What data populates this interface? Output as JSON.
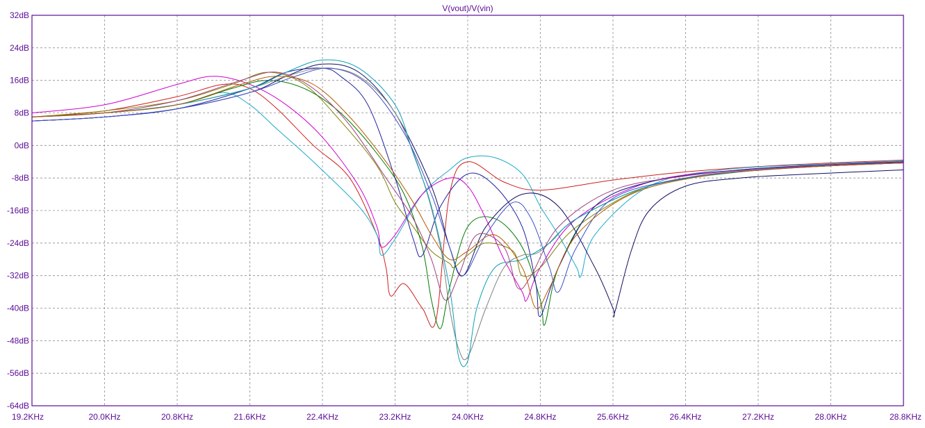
{
  "chart_data": {
    "type": "line",
    "title": "V(vout)/V(vin)",
    "x_unit": "KHz",
    "y_unit": "dB",
    "xlim": [
      19.2,
      28.8
    ],
    "ylim": [
      -64,
      32
    ],
    "grid": true,
    "x_ticks": [
      "19.2KHz",
      "20.0KHz",
      "20.8KHz",
      "21.6KHz",
      "22.4KHz",
      "23.2KHz",
      "24.0KHz",
      "24.8KHz",
      "25.6KHz",
      "26.4KHz",
      "27.2KHz",
      "28.0KHz",
      "28.8KHz"
    ],
    "y_ticks": [
      "32dB",
      "24dB",
      "16dB",
      "8dB",
      "0dB",
      "-8dB",
      "-16dB",
      "-24dB",
      "-32dB",
      "-40dB",
      "-48dB",
      "-56dB",
      "-64dB"
    ],
    "colors": {
      "background": "#ffffff",
      "axes": "#5a0a96",
      "grid": "#8c8c8c",
      "tick_text": "#5a0a96"
    },
    "series": [
      {
        "color": "#d01e1e",
        "x": [
          19.2,
          20.0,
          20.8,
          21.3,
          21.6,
          21.9,
          22.3,
          22.7,
          23.0,
          23.1,
          23.15,
          23.3,
          23.5,
          23.65,
          23.8,
          24.0,
          24.4,
          24.8,
          25.6,
          26.4,
          27.2,
          28.0,
          28.8
        ],
        "y": [
          7,
          8.5,
          12,
          15,
          14,
          9,
          0,
          -8,
          -22,
          -30,
          -37,
          -34,
          -40,
          -43,
          -12,
          -4,
          -9,
          -11,
          -8.5,
          -6.5,
          -5.2,
          -4.3,
          -3.6
        ]
      },
      {
        "color": "#1aa9c7",
        "x": [
          19.2,
          20.0,
          20.8,
          21.3,
          21.6,
          21.9,
          22.3,
          22.8,
          23.0,
          23.05,
          23.2,
          23.5,
          23.8,
          24.0,
          24.3,
          24.6,
          24.8,
          25.0,
          25.2,
          25.25,
          25.4,
          26.0,
          26.8,
          28.0,
          28.8
        ],
        "y": [
          7,
          8,
          10,
          13,
          10,
          4,
          -4,
          -15,
          -22,
          -27,
          -23,
          -12,
          -6,
          -3,
          -3,
          -7,
          -15,
          -22,
          -30,
          -32,
          -22,
          -10,
          -6,
          -4.5,
          -3.8
        ]
      },
      {
        "color": "#d000d0",
        "x": [
          19.2,
          20.0,
          20.8,
          21.2,
          21.6,
          22.0,
          22.4,
          22.8,
          23.0,
          23.05,
          23.2,
          23.5,
          23.8,
          24.0,
          24.2,
          24.4,
          24.6,
          24.65,
          24.8,
          25.2,
          26.0,
          27.0,
          28.0,
          28.8
        ],
        "y": [
          8,
          10,
          15,
          17,
          15,
          10,
          2,
          -10,
          -20,
          -25,
          -22,
          -12,
          -8,
          -10,
          -18,
          -28,
          -36,
          -38,
          -30,
          -18,
          -9,
          -6,
          -5,
          -4.3
        ]
      },
      {
        "color": "#808000",
        "x": [
          19.2,
          20.0,
          20.8,
          21.4,
          21.8,
          22.2,
          22.6,
          23.0,
          23.2,
          23.4,
          23.6,
          23.8,
          23.85,
          24.0,
          24.2,
          24.5,
          24.6,
          24.8,
          25.2,
          26.0,
          27.0,
          28.0,
          28.8
        ],
        "y": [
          7,
          8.5,
          11,
          15,
          18,
          15,
          6,
          -5,
          -14,
          -20,
          -26,
          -29,
          -30,
          -27,
          -24,
          -26,
          -32,
          -30,
          -20,
          -10,
          -6.5,
          -5,
          -4.2
        ]
      },
      {
        "color": "#007800",
        "x": [
          19.2,
          20.0,
          20.8,
          21.4,
          21.8,
          22.2,
          22.6,
          23.0,
          23.3,
          23.5,
          23.6,
          23.7,
          23.8,
          24.0,
          24.3,
          24.6,
          24.8,
          24.85,
          25.0,
          25.4,
          26.0,
          27.0,
          28.0,
          28.8
        ],
        "y": [
          7,
          8,
          10,
          14,
          16,
          14,
          8,
          -2,
          -12,
          -25,
          -38,
          -45,
          -35,
          -20,
          -18,
          -25,
          -38,
          -44,
          -30,
          -15,
          -9,
          -6,
          -4.8,
          -4
        ]
      },
      {
        "color": "#1e1ea0",
        "x": [
          19.2,
          20.0,
          20.8,
          21.6,
          22.0,
          22.4,
          22.6,
          22.9,
          23.2,
          23.4,
          23.5,
          23.7,
          24.0,
          24.3,
          24.6,
          24.75,
          24.8,
          25.0,
          25.4,
          26.0,
          27.0,
          28.0,
          28.8
        ],
        "y": [
          6,
          7,
          9,
          14,
          18,
          19,
          17,
          10,
          -8,
          -23,
          -27,
          -15,
          -7,
          -10,
          -20,
          -34,
          -42,
          -30,
          -15,
          -9,
          -6,
          -4.7,
          -4
        ]
      },
      {
        "color": "#101060",
        "x": [
          19.2,
          20.0,
          20.8,
          21.6,
          22.0,
          22.4,
          22.8,
          23.2,
          23.6,
          23.8,
          23.95,
          24.2,
          24.6,
          25.0,
          25.4,
          25.6,
          25.62,
          25.8,
          26.0,
          26.4,
          27.0,
          27.8,
          28.8
        ],
        "y": [
          6,
          7,
          9,
          13,
          17,
          20,
          18,
          8,
          -10,
          -25,
          -32,
          -20,
          -12,
          -15,
          -30,
          -40,
          -41,
          -26,
          -16,
          -10,
          -8,
          -7,
          -6
        ]
      },
      {
        "color": "#808080",
        "x": [
          19.2,
          20.0,
          20.8,
          21.6,
          22.0,
          22.4,
          22.8,
          23.2,
          23.5,
          23.7,
          23.8,
          23.9,
          24.0,
          24.2,
          24.4,
          24.6,
          24.8,
          25.2,
          26.0,
          27.0,
          28.0,
          28.8
        ],
        "y": [
          7,
          8,
          10,
          14,
          17,
          19,
          17,
          8,
          -8,
          -25,
          -40,
          -50,
          -52,
          -40,
          -30,
          -27,
          -26,
          -18,
          -10,
          -6.5,
          -5,
          -4.3
        ]
      },
      {
        "color": "#0aa0b4",
        "x": [
          19.2,
          20.0,
          20.8,
          21.6,
          22.0,
          22.4,
          22.8,
          23.2,
          23.4,
          23.6,
          23.8,
          23.9,
          24.0,
          24.1,
          24.3,
          24.6,
          24.9,
          25.2,
          26.0,
          27.0,
          28.0,
          28.8
        ],
        "y": [
          7,
          8,
          10,
          14,
          18,
          21,
          19,
          10,
          -2,
          -15,
          -35,
          -52,
          -53,
          -40,
          -30,
          -28,
          -24,
          -18,
          -10,
          -6.5,
          -5,
          -4.3
        ]
      },
      {
        "color": "#a04080",
        "x": [
          19.2,
          20.0,
          20.8,
          21.5,
          21.9,
          22.3,
          22.7,
          23.1,
          23.4,
          23.6,
          23.75,
          23.9,
          24.1,
          24.4,
          24.55,
          24.7,
          25.0,
          25.6,
          26.4,
          27.2,
          28.0,
          28.8
        ],
        "y": [
          7,
          8,
          11,
          16,
          18,
          14,
          5,
          -8,
          -18,
          -28,
          -38,
          -32,
          -22,
          -25,
          -35,
          -32,
          -20,
          -11,
          -7.5,
          -5.8,
          -4.8,
          -4.2
        ]
      },
      {
        "color": "#3c50c8",
        "x": [
          19.2,
          20.0,
          20.8,
          21.6,
          22.1,
          22.5,
          22.9,
          23.3,
          23.6,
          23.8,
          23.95,
          24.2,
          24.5,
          24.7,
          24.9,
          25.0,
          25.2,
          25.6,
          26.4,
          27.2,
          28.0,
          28.8
        ],
        "y": [
          6,
          7,
          9,
          13,
          17,
          19,
          15,
          3,
          -12,
          -25,
          -32,
          -22,
          -14,
          -18,
          -30,
          -36,
          -25,
          -13,
          -8,
          -6,
          -5,
          -4.3
        ]
      },
      {
        "color": "#b45a00",
        "x": [
          19.2,
          20.0,
          20.8,
          21.5,
          21.9,
          22.3,
          22.7,
          23.1,
          23.4,
          23.6,
          23.8,
          24.0,
          24.3,
          24.6,
          24.75,
          24.9,
          25.2,
          25.8,
          26.6,
          27.4,
          28.2,
          28.8
        ],
        "y": [
          7,
          8,
          10,
          15,
          17,
          15,
          7,
          -4,
          -14,
          -22,
          -28,
          -26,
          -22,
          -30,
          -40,
          -35,
          -22,
          -12,
          -7.5,
          -5.8,
          -4.8,
          -4.3
        ]
      }
    ]
  }
}
